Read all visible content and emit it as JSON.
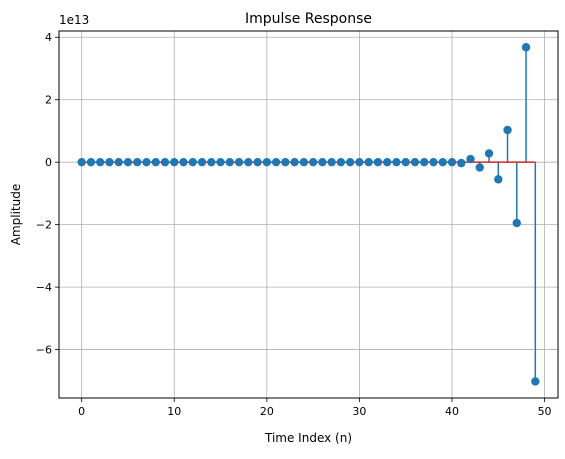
{
  "chart_data": {
    "type": "stem",
    "title": "Impulse Response",
    "xlabel": "Time Index (n)",
    "ylabel": "Amplitude",
    "y_offset_label": "1e13",
    "y_scale": 10000000000000.0,
    "xlim": [
      -2.45,
      51.45
    ],
    "ylim": [
      -7.55,
      4.2
    ],
    "x_ticks": [
      0,
      10,
      20,
      30,
      40,
      50
    ],
    "x_tick_labels": [
      "0",
      "10",
      "20",
      "30",
      "40",
      "50"
    ],
    "y_ticks": [
      4,
      2,
      0,
      -2,
      -4,
      -6
    ],
    "y_tick_labels": [
      "4",
      "2",
      "0",
      "−2",
      "−4",
      "−6"
    ],
    "grid": true,
    "baseline": 0,
    "colors": {
      "stem": "#1f77b4",
      "marker": "#1f77b4",
      "baseline": "#d62728",
      "grid": "#b0b0b0",
      "axes": "#000000"
    },
    "x": [
      0,
      1,
      2,
      3,
      4,
      5,
      6,
      7,
      8,
      9,
      10,
      11,
      12,
      13,
      14,
      15,
      16,
      17,
      18,
      19,
      20,
      21,
      22,
      23,
      24,
      25,
      26,
      27,
      28,
      29,
      30,
      31,
      32,
      33,
      34,
      35,
      36,
      37,
      38,
      39,
      40,
      41,
      42,
      43,
      44,
      45,
      46,
      47,
      48,
      49
    ],
    "values": [
      0,
      0,
      0,
      0,
      0,
      0,
      0,
      0,
      0,
      0,
      0,
      0,
      0,
      0,
      0,
      0,
      0,
      0,
      0,
      0,
      0,
      0,
      0,
      0,
      0,
      0,
      0,
      0,
      0,
      0,
      0,
      0,
      0,
      0,
      0,
      0,
      0,
      0,
      0,
      0,
      0,
      -0.03,
      0.1,
      -0.17,
      0.28,
      -0.55,
      1.03,
      -1.95,
      3.68,
      -7.02
    ]
  }
}
